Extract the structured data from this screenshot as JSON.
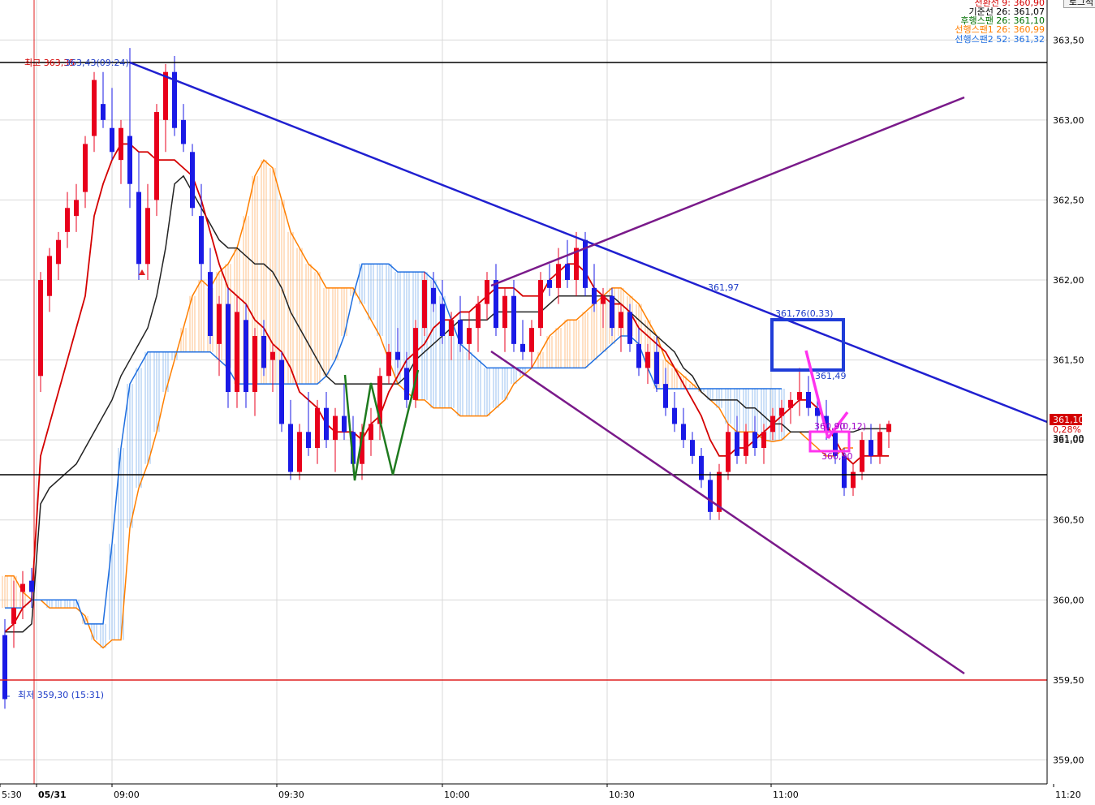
{
  "button_label": "로그적",
  "chart_data": {
    "type": "candlestick",
    "ylim": [
      358.85,
      363.75
    ],
    "y_ticks": [
      "363,50",
      "363,00",
      "362,50",
      "362,00",
      "361,50",
      "361,00",
      "360,50",
      "360,00",
      "359,50",
      "359,00"
    ],
    "x_ticks": [
      "5:30",
      "05/31",
      "09:00",
      "09:30",
      "10:00",
      "10:30",
      "11:00",
      "11:20"
    ],
    "legend": [
      {
        "text": "전환선  9: 360,90",
        "color": "#d40000"
      },
      {
        "text": "기준선 26: 361,07",
        "color": "#000000"
      },
      {
        "text": "후행스팬 26: 361,10",
        "color": "#007000"
      },
      {
        "text": "선행스팬1 26: 360,99",
        "color": "#ff7f00"
      },
      {
        "text": "선행스팬2 52: 361,32",
        "color": "#1e6ee0"
      }
    ],
    "high_label": "최고 363,35",
    "high_label_overlap": "363,43(09:24)",
    "low_label": "최저 359,30 (15:31)",
    "annotations": {
      "tl_mid": "361,97",
      "box_label": "361,76(0,33)",
      "point_label": "361,49",
      "small_label1": "360,90",
      "small_label2": "(0,12)",
      "small_label3": "360,90"
    },
    "current_price": "361,10",
    "current_pct": "0,28%",
    "under_price": "361,00",
    "candles": [
      {
        "o": 359.78,
        "h": 359.88,
        "l": 359.32,
        "c": 359.38
      },
      {
        "o": 359.85,
        "h": 360.12,
        "l": 359.7,
        "c": 359.95
      },
      {
        "o": 360.05,
        "h": 360.18,
        "l": 359.88,
        "c": 360.1
      },
      {
        "o": 360.12,
        "h": 360.2,
        "l": 359.95,
        "c": 360.05
      },
      {
        "o": 361.4,
        "h": 362.05,
        "l": 361.3,
        "c": 362.0
      },
      {
        "o": 361.9,
        "h": 362.2,
        "l": 361.8,
        "c": 362.15
      },
      {
        "o": 362.1,
        "h": 362.3,
        "l": 362.0,
        "c": 362.25
      },
      {
        "o": 362.3,
        "h": 362.55,
        "l": 362.2,
        "c": 362.45
      },
      {
        "o": 362.4,
        "h": 362.6,
        "l": 362.3,
        "c": 362.5
      },
      {
        "o": 362.55,
        "h": 362.9,
        "l": 362.45,
        "c": 362.85
      },
      {
        "o": 362.9,
        "h": 363.3,
        "l": 362.8,
        "c": 363.25
      },
      {
        "o": 363.1,
        "h": 363.3,
        "l": 362.95,
        "c": 363.0
      },
      {
        "o": 362.95,
        "h": 363.2,
        "l": 362.75,
        "c": 362.8
      },
      {
        "o": 362.75,
        "h": 363.0,
        "l": 362.6,
        "c": 362.95
      },
      {
        "o": 362.9,
        "h": 363.45,
        "l": 362.45,
        "c": 362.6
      },
      {
        "o": 362.55,
        "h": 362.8,
        "l": 362.0,
        "c": 362.1
      },
      {
        "o": 362.1,
        "h": 362.6,
        "l": 362.0,
        "c": 362.45
      },
      {
        "o": 362.5,
        "h": 363.1,
        "l": 362.4,
        "c": 363.05
      },
      {
        "o": 363.0,
        "h": 363.35,
        "l": 362.8,
        "c": 363.3
      },
      {
        "o": 363.3,
        "h": 363.4,
        "l": 362.9,
        "c": 362.95
      },
      {
        "o": 363.0,
        "h": 363.1,
        "l": 362.8,
        "c": 362.85
      },
      {
        "o": 362.8,
        "h": 362.85,
        "l": 362.4,
        "c": 362.45
      },
      {
        "o": 362.4,
        "h": 362.6,
        "l": 362.0,
        "c": 362.1
      },
      {
        "o": 362.05,
        "h": 362.2,
        "l": 361.6,
        "c": 361.65
      },
      {
        "o": 361.6,
        "h": 361.9,
        "l": 361.4,
        "c": 361.85
      },
      {
        "o": 361.85,
        "h": 361.95,
        "l": 361.2,
        "c": 361.3
      },
      {
        "o": 361.3,
        "h": 361.9,
        "l": 361.2,
        "c": 361.8
      },
      {
        "o": 361.75,
        "h": 361.85,
        "l": 361.2,
        "c": 361.3
      },
      {
        "o": 361.3,
        "h": 361.7,
        "l": 361.15,
        "c": 361.65
      },
      {
        "o": 361.65,
        "h": 361.75,
        "l": 361.4,
        "c": 361.45
      },
      {
        "o": 361.5,
        "h": 361.6,
        "l": 361.3,
        "c": 361.55
      },
      {
        "o": 361.5,
        "h": 361.55,
        "l": 361.05,
        "c": 361.1
      },
      {
        "o": 361.1,
        "h": 361.25,
        "l": 360.75,
        "c": 360.8
      },
      {
        "o": 360.8,
        "h": 361.1,
        "l": 360.75,
        "c": 361.05
      },
      {
        "o": 361.05,
        "h": 361.3,
        "l": 360.9,
        "c": 360.95
      },
      {
        "o": 360.95,
        "h": 361.25,
        "l": 360.85,
        "c": 361.2
      },
      {
        "o": 361.2,
        "h": 361.3,
        "l": 360.95,
        "c": 361.0
      },
      {
        "o": 361.0,
        "h": 361.2,
        "l": 360.8,
        "c": 361.15
      },
      {
        "o": 361.15,
        "h": 361.35,
        "l": 361.0,
        "c": 361.05
      },
      {
        "o": 361.05,
        "h": 361.15,
        "l": 360.8,
        "c": 360.85
      },
      {
        "o": 360.85,
        "h": 361.1,
        "l": 360.75,
        "c": 361.05
      },
      {
        "o": 361.0,
        "h": 361.2,
        "l": 360.9,
        "c": 361.1
      },
      {
        "o": 361.1,
        "h": 361.45,
        "l": 361.0,
        "c": 361.4
      },
      {
        "o": 361.4,
        "h": 361.6,
        "l": 361.35,
        "c": 361.55
      },
      {
        "o": 361.55,
        "h": 361.7,
        "l": 361.45,
        "c": 361.5
      },
      {
        "o": 361.45,
        "h": 361.55,
        "l": 361.2,
        "c": 361.25
      },
      {
        "o": 361.25,
        "h": 361.75,
        "l": 361.2,
        "c": 361.7
      },
      {
        "o": 361.7,
        "h": 362.05,
        "l": 361.65,
        "c": 362.0
      },
      {
        "o": 361.95,
        "h": 362.05,
        "l": 361.8,
        "c": 361.85
      },
      {
        "o": 361.85,
        "h": 362.0,
        "l": 361.6,
        "c": 361.65
      },
      {
        "o": 361.65,
        "h": 361.8,
        "l": 361.5,
        "c": 361.75
      },
      {
        "o": 361.75,
        "h": 361.9,
        "l": 361.55,
        "c": 361.6
      },
      {
        "o": 361.6,
        "h": 361.8,
        "l": 361.5,
        "c": 361.7
      },
      {
        "o": 361.7,
        "h": 361.9,
        "l": 361.55,
        "c": 361.85
      },
      {
        "o": 361.85,
        "h": 362.05,
        "l": 361.75,
        "c": 362.0
      },
      {
        "o": 362.0,
        "h": 362.1,
        "l": 361.65,
        "c": 361.7
      },
      {
        "o": 361.7,
        "h": 361.95,
        "l": 361.55,
        "c": 361.9
      },
      {
        "o": 361.9,
        "h": 362.0,
        "l": 361.55,
        "c": 361.6
      },
      {
        "o": 361.6,
        "h": 361.75,
        "l": 361.5,
        "c": 361.55
      },
      {
        "o": 361.55,
        "h": 361.75,
        "l": 361.45,
        "c": 361.7
      },
      {
        "o": 361.7,
        "h": 362.05,
        "l": 361.65,
        "c": 362.0
      },
      {
        "o": 362.0,
        "h": 362.1,
        "l": 361.9,
        "c": 361.95
      },
      {
        "o": 361.95,
        "h": 362.2,
        "l": 361.85,
        "c": 362.1
      },
      {
        "o": 362.1,
        "h": 362.25,
        "l": 361.95,
        "c": 362.0
      },
      {
        "o": 362.0,
        "h": 362.3,
        "l": 361.9,
        "c": 362.2
      },
      {
        "o": 362.25,
        "h": 362.3,
        "l": 361.9,
        "c": 361.95
      },
      {
        "o": 361.95,
        "h": 362.1,
        "l": 361.8,
        "c": 361.85
      },
      {
        "o": 361.85,
        "h": 361.95,
        "l": 361.7,
        "c": 361.9
      },
      {
        "o": 361.9,
        "h": 361.95,
        "l": 361.65,
        "c": 361.7
      },
      {
        "o": 361.7,
        "h": 361.85,
        "l": 361.55,
        "c": 361.8
      },
      {
        "o": 361.8,
        "h": 361.85,
        "l": 361.55,
        "c": 361.6
      },
      {
        "o": 361.6,
        "h": 361.7,
        "l": 361.4,
        "c": 361.45
      },
      {
        "o": 361.45,
        "h": 361.6,
        "l": 361.35,
        "c": 361.55
      },
      {
        "o": 361.55,
        "h": 361.65,
        "l": 361.3,
        "c": 361.35
      },
      {
        "o": 361.35,
        "h": 361.45,
        "l": 361.15,
        "c": 361.2
      },
      {
        "o": 361.2,
        "h": 361.3,
        "l": 361.05,
        "c": 361.1
      },
      {
        "o": 361.1,
        "h": 361.2,
        "l": 360.95,
        "c": 361.0
      },
      {
        "o": 361.0,
        "h": 361.05,
        "l": 360.85,
        "c": 360.9
      },
      {
        "o": 360.9,
        "h": 360.95,
        "l": 360.7,
        "c": 360.75
      },
      {
        "o": 360.75,
        "h": 360.8,
        "l": 360.5,
        "c": 360.55
      },
      {
        "o": 360.55,
        "h": 360.85,
        "l": 360.5,
        "c": 360.8
      },
      {
        "o": 360.8,
        "h": 361.1,
        "l": 360.75,
        "c": 361.05
      },
      {
        "o": 361.05,
        "h": 361.15,
        "l": 360.85,
        "c": 360.9
      },
      {
        "o": 360.9,
        "h": 361.1,
        "l": 360.85,
        "c": 361.05
      },
      {
        "o": 361.05,
        "h": 361.15,
        "l": 360.9,
        "c": 360.95
      },
      {
        "o": 360.95,
        "h": 361.1,
        "l": 360.85,
        "c": 361.05
      },
      {
        "o": 361.05,
        "h": 361.2,
        "l": 361.0,
        "c": 361.15
      },
      {
        "o": 361.15,
        "h": 361.25,
        "l": 361.05,
        "c": 361.2
      },
      {
        "o": 361.2,
        "h": 361.3,
        "l": 361.1,
        "c": 361.25
      },
      {
        "o": 361.25,
        "h": 361.45,
        "l": 361.15,
        "c": 361.3
      },
      {
        "o": 361.3,
        "h": 361.4,
        "l": 361.15,
        "c": 361.2
      },
      {
        "o": 361.2,
        "h": 361.3,
        "l": 361.05,
        "c": 361.15
      },
      {
        "o": 361.15,
        "h": 361.25,
        "l": 361.0,
        "c": 361.05
      },
      {
        "o": 361.05,
        "h": 361.1,
        "l": 360.85,
        "c": 360.9
      },
      {
        "o": 360.9,
        "h": 360.95,
        "l": 360.65,
        "c": 360.7
      },
      {
        "o": 360.7,
        "h": 360.85,
        "l": 360.65,
        "c": 360.8
      },
      {
        "o": 360.8,
        "h": 361.05,
        "l": 360.75,
        "c": 361.0
      },
      {
        "o": 361.0,
        "h": 361.1,
        "l": 360.85,
        "c": 360.9
      },
      {
        "o": 360.9,
        "h": 361.1,
        "l": 360.85,
        "c": 361.05
      },
      {
        "o": 361.05,
        "h": 361.12,
        "l": 360.95,
        "c": 361.1
      }
    ],
    "tenkan": [
      359.8,
      359.85,
      359.95,
      360.0,
      360.9,
      361.1,
      361.3,
      361.5,
      361.7,
      361.9,
      362.4,
      362.6,
      362.75,
      362.85,
      362.85,
      362.8,
      362.8,
      362.75,
      362.75,
      362.75,
      362.7,
      362.65,
      362.5,
      362.3,
      362.1,
      361.95,
      361.9,
      361.85,
      361.75,
      361.7,
      361.6,
      361.55,
      361.45,
      361.3,
      361.25,
      361.2,
      361.1,
      361.05,
      361.05,
      361.05,
      361.0,
      361.1,
      361.15,
      361.3,
      361.4,
      361.5,
      361.55,
      361.6,
      361.7,
      361.75,
      361.75,
      361.8,
      361.8,
      361.85,
      361.9,
      361.95,
      361.95,
      361.95,
      361.9,
      361.9,
      361.9,
      362.0,
      362.05,
      362.1,
      362.1,
      362.05,
      361.95,
      361.9,
      361.85,
      361.85,
      361.8,
      361.7,
      361.65,
      361.6,
      361.55,
      361.45,
      361.35,
      361.25,
      361.15,
      361.0,
      360.9,
      360.9,
      360.95,
      360.95,
      361.0,
      361.05,
      361.1,
      361.15,
      361.2,
      361.25,
      361.25,
      361.2,
      361.1,
      361.0,
      360.9,
      360.85,
      360.9,
      360.9,
      360.9,
      360.9
    ],
    "kijun": [
      359.8,
      359.8,
      359.8,
      359.85,
      360.6,
      360.7,
      360.75,
      360.8,
      360.85,
      360.95,
      361.05,
      361.15,
      361.25,
      361.4,
      361.5,
      361.6,
      361.7,
      361.9,
      362.2,
      362.6,
      362.65,
      362.55,
      362.45,
      362.35,
      362.25,
      362.2,
      362.2,
      362.15,
      362.1,
      362.1,
      362.05,
      361.95,
      361.8,
      361.7,
      361.6,
      361.5,
      361.4,
      361.35,
      361.35,
      361.35,
      361.35,
      361.35,
      361.35,
      361.35,
      361.35,
      361.4,
      361.5,
      361.55,
      361.6,
      361.65,
      361.7,
      361.75,
      361.75,
      361.75,
      361.75,
      361.8,
      361.8,
      361.8,
      361.8,
      361.8,
      361.8,
      361.85,
      361.9,
      361.9,
      361.9,
      361.9,
      361.9,
      361.9,
      361.9,
      361.85,
      361.8,
      361.75,
      361.7,
      361.65,
      361.6,
      361.55,
      361.45,
      361.4,
      361.3,
      361.25,
      361.25,
      361.25,
      361.25,
      361.2,
      361.2,
      361.15,
      361.1,
      361.1,
      361.05,
      361.05,
      361.05,
      361.05,
      361.05,
      361.05,
      361.05,
      361.05,
      361.07,
      361.07,
      361.07,
      361.07
    ],
    "span1": [
      360.15,
      360.15,
      360.05,
      360.0,
      360.0,
      359.95,
      359.95,
      359.95,
      359.95,
      359.9,
      359.75,
      359.7,
      359.75,
      359.75,
      360.45,
      360.7,
      360.85,
      361.05,
      361.3,
      361.5,
      361.7,
      361.9,
      362.0,
      361.95,
      362.05,
      362.1,
      362.2,
      362.4,
      362.65,
      362.75,
      362.7,
      362.5,
      362.3,
      362.2,
      362.1,
      362.05,
      361.95,
      361.95,
      361.95,
      361.95,
      361.85,
      361.75,
      361.65,
      361.5,
      361.35,
      361.3,
      361.25,
      361.25,
      361.2,
      361.2,
      361.2,
      361.15,
      361.15,
      361.15,
      361.15,
      361.2,
      361.25,
      361.35,
      361.4,
      361.45,
      361.55,
      361.65,
      361.7,
      361.75,
      361.75,
      361.8,
      361.85,
      361.9,
      361.95,
      361.95,
      361.9,
      361.85,
      361.75,
      361.65,
      361.5,
      361.45,
      361.4,
      361.35,
      361.3,
      361.25,
      361.2,
      361.1,
      361.05,
      361.05,
      361.05,
      361.0,
      360.99,
      361.0,
      361.05,
      361.05,
      361.0,
      360.95,
      360.9,
      360.9,
      360.95,
      360.95
    ],
    "span2": [
      359.95,
      359.95,
      359.95,
      360.0,
      360.0,
      360.0,
      360.0,
      360.0,
      360.0,
      359.85,
      359.85,
      359.85,
      360.35,
      360.95,
      361.35,
      361.45,
      361.55,
      361.55,
      361.55,
      361.55,
      361.55,
      361.55,
      361.55,
      361.55,
      361.5,
      361.45,
      361.35,
      361.35,
      361.35,
      361.35,
      361.35,
      361.35,
      361.35,
      361.35,
      361.35,
      361.35,
      361.4,
      361.5,
      361.65,
      361.9,
      362.1,
      362.1,
      362.1,
      362.1,
      362.05,
      362.05,
      362.05,
      362.05,
      362.0,
      361.9,
      361.75,
      361.6,
      361.55,
      361.5,
      361.45,
      361.45,
      361.45,
      361.45,
      361.45,
      361.45,
      361.45,
      361.45,
      361.45,
      361.45,
      361.45,
      361.45,
      361.5,
      361.55,
      361.6,
      361.65,
      361.65,
      361.6,
      361.45,
      361.32,
      361.32,
      361.32,
      361.32,
      361.32,
      361.32,
      361.32,
      361.32,
      361.32,
      361.32,
      361.32,
      361.32,
      361.32,
      361.32,
      361.32
    ]
  }
}
